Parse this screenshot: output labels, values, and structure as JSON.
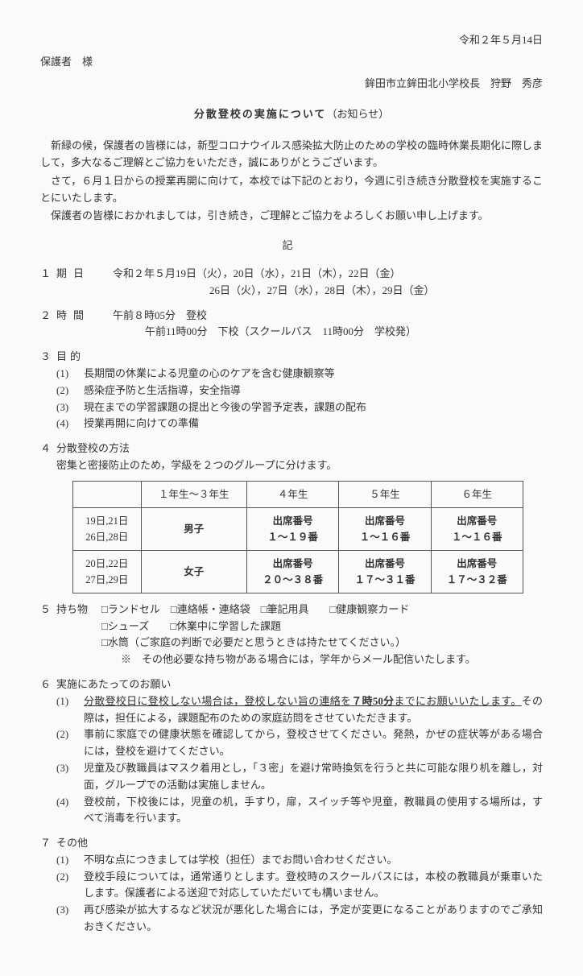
{
  "date": "令和２年５月14日",
  "recipient": "保護者　様",
  "sender": "鉾田市立鉾田北小学校長　狩野　秀彦",
  "title_bold": "分散登校の実施について",
  "title_suffix": "（お知らせ）",
  "intro": [
    "新緑の候，保護者の皆様には，新型コロナウイルス感染拡大防止のための学校の臨時休業長期化に際しまして，多大なるご理解とご協力をいただき，誠にありがとうございます。",
    "さて，６月１日からの授業再開に向けて，本校では下記のとおり，今週に引き続き分散登校を実施することにいたします。",
    "保護者の皆様におかれましては，引き続き，ご理解とご協力をよろしくお願い申し上げます。"
  ],
  "ki": "記",
  "period": {
    "no": "１",
    "label": "期日",
    "line1": "令和２年５月19日（火），20日（水），21日（木），22日（金）",
    "line2": "26日（火），27日（水），28日（木），29日（金）"
  },
  "time": {
    "no": "２",
    "label": "時間",
    "line1": "午前８時05分　登校",
    "line2": "午前11時00分　下校（スクールバス　11時00分　学校発）"
  },
  "purpose": {
    "no": "３",
    "label": "目的",
    "items": [
      {
        "n": "(1)",
        "t": "長期間の休業による児童の心のケアを含む健康観察等"
      },
      {
        "n": "(2)",
        "t": "感染症予防と生活指導，安全指導"
      },
      {
        "n": "(3)",
        "t": "現在までの学習課題の提出と今後の学習予定表，課題の配布"
      },
      {
        "n": "(4)",
        "t": "授業再開に向けての準備"
      }
    ]
  },
  "method": {
    "no": "４",
    "label": "分散登校の方法",
    "desc": "密集と密接防止のため，学級を２つのグループに分けます。",
    "table": {
      "headers": [
        "",
        "１年生～３年生",
        "４年生",
        "５年生",
        "６年生"
      ],
      "rows": [
        {
          "dates": "19日,21日\n26日,28日",
          "c1": "男子",
          "c2": "出席番号\n１～１９番",
          "c3": "出席番号\n１～１６番",
          "c4": "出席番号\n１～１６番"
        },
        {
          "dates": "20日,22日\n27日,29日",
          "c1": "女子",
          "c2": "出席番号\n２０～３８番",
          "c3": "出席番号\n１７～３１番",
          "c4": "出席番号\n１７～３２番"
        }
      ]
    }
  },
  "items": {
    "no": "５",
    "label": "持ち物",
    "line1": "□ランドセル　□連絡帳・連絡袋　□筆記用具　　□健康観察カード",
    "line2": "□シューズ　　□休業中に学習した課題",
    "line3": "□水筒（ご家庭の判断で必要だと思うときは持たせてください。）",
    "note": "※　その他必要な持ち物がある場合には，学年からメール配信いたします。"
  },
  "request": {
    "no": "６",
    "label": "実施にあたってのお願い",
    "items": [
      {
        "n": "(1)",
        "u1": "分散登校日に登校しない場合は，登校しない旨の連絡を",
        "bold": "７時50分",
        "u2": "までにお願いいたします。",
        "rest": "その際は，担任による，課題配布のための家庭訪問をさせていただきます。"
      },
      {
        "n": "(2)",
        "t": "事前に家庭での健康状態を確認してから，登校させてください。発熱，かぜの症状等がある場合には，登校を避けてください。"
      },
      {
        "n": "(3)",
        "t": "児童及び教職員はマスク着用とし，「３密」を避け常時換気を行うと共に可能な限り机を離し，対面，グループでの活動は実施しません。"
      },
      {
        "n": "(4)",
        "t": "登校前，下校後には，児童の机，手すり，扉，スイッチ等や児童，教職員の使用する場所は，すべて消毒を行います。"
      }
    ]
  },
  "other": {
    "no": "７",
    "label": "その他",
    "items": [
      {
        "n": "(1)",
        "t": "不明な点につきましては学校（担任）までお問い合わせください。"
      },
      {
        "n": "(2)",
        "t": "登校手段については，通常通りとします。登校時のスクールバスには，本校の教職員が乗車いたします。保護者による送迎で対応していただいても構いません。"
      },
      {
        "n": "(3)",
        "t": "再び感染が拡大するなど状況が悪化した場合には，予定が変更になることがありますのでご承知おきください。"
      }
    ]
  }
}
